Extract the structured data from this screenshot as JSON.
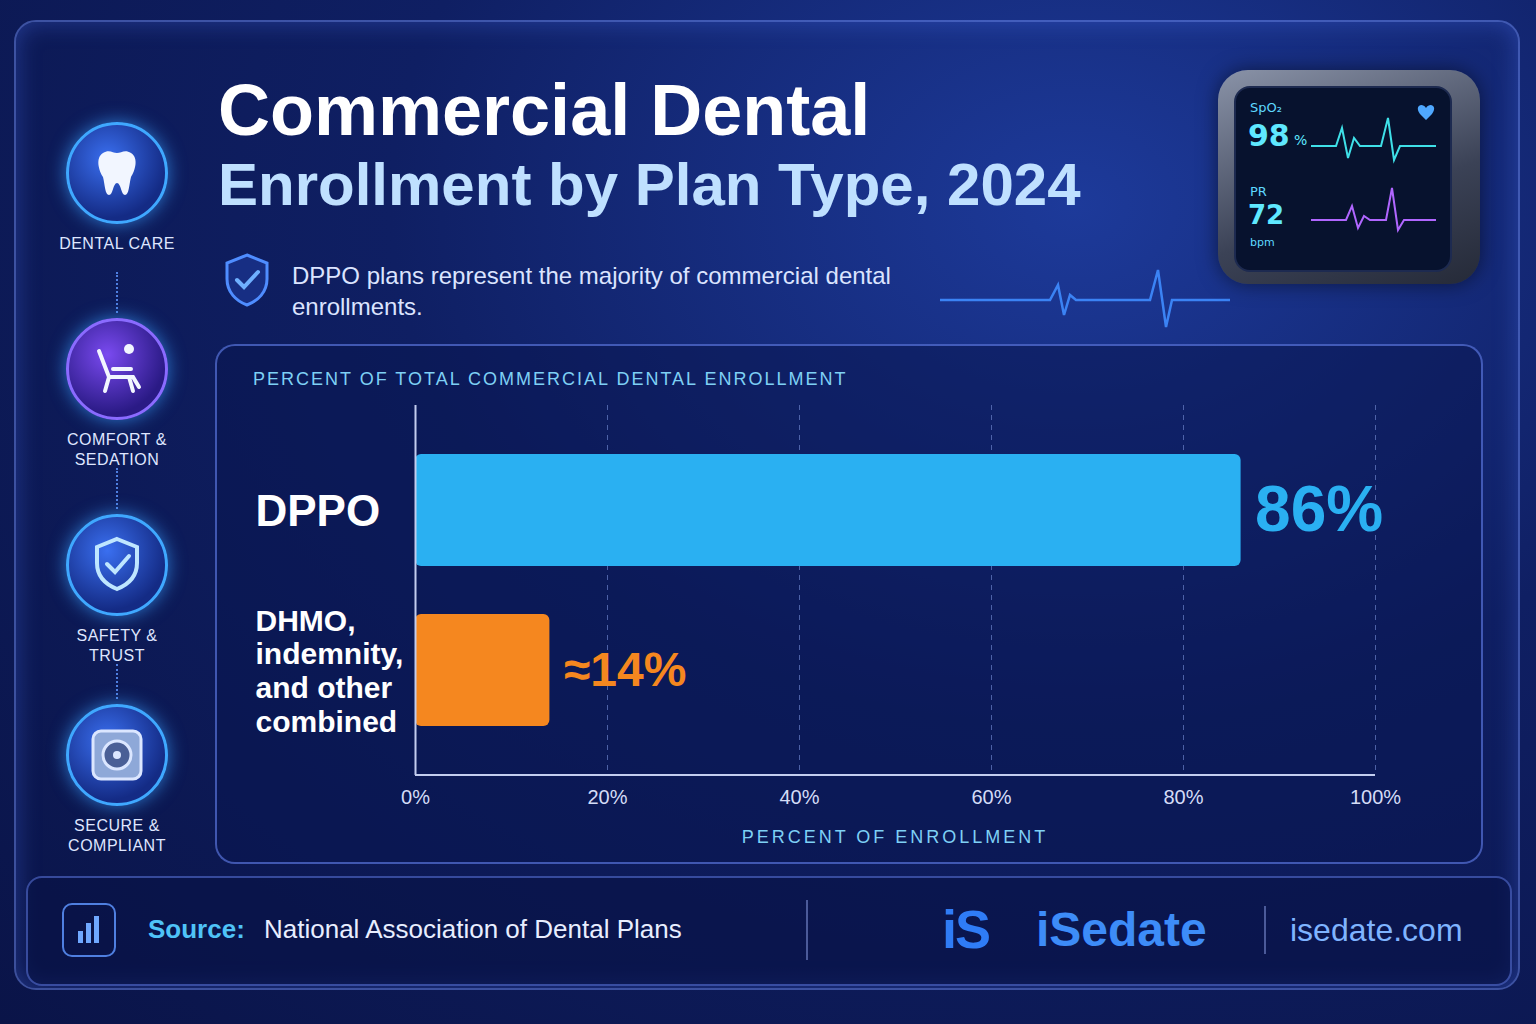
{
  "chart_data": {
    "type": "bar",
    "orientation": "horizontal",
    "title": "Commercial Dental Enrollment by Plan Type, 2024",
    "subtitle": "DPPO plans represent the majority of commercial dental enrollments.",
    "header": "PERCENT OF TOTAL COMMERCIAL DENTAL ENROLLMENT",
    "xlabel": "PERCENT OF ENROLLMENT",
    "categories": [
      "DPPO",
      "DHMO, indemnity, and other combined"
    ],
    "values": [
      86,
      14
    ],
    "value_labels": [
      "86%",
      "≈14%"
    ],
    "data_labels": true,
    "colors": [
      "#2ab0f2",
      "#f5871f"
    ],
    "xlim": [
      0,
      100
    ],
    "xticks": [
      {
        "value": 0,
        "label": "0%"
      },
      {
        "value": 20,
        "label": "20%"
      },
      {
        "value": 40,
        "label": "40%"
      },
      {
        "value": 60,
        "label": "60%"
      },
      {
        "value": 80,
        "label": "80%"
      },
      {
        "value": 100,
        "label": "100%"
      }
    ],
    "grid": true
  },
  "sidebar": [
    "DENTAL CARE",
    "COMFORT & SEDATION",
    "SAFETY & TRUST",
    "SECURE & COMPLIANT"
  ],
  "source_label": "Source:",
  "source": "National Association of Dental Plans",
  "brand": {
    "logo": "iS",
    "name": "iSedate",
    "url": "isedate.com"
  },
  "monitor": {
    "spo2_label": "SpO₂",
    "spo2": 98,
    "spo2_unit": "%",
    "pr_label": "PR",
    "pr": 72,
    "pr_unit": "bpm"
  }
}
